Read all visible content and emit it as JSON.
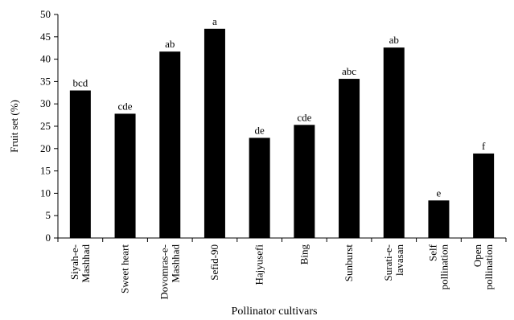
{
  "chart_data": {
    "type": "bar",
    "xlabel": "Pollinator  cultivars",
    "ylabel": "Fruit set (%)",
    "ylim": [
      0,
      50
    ],
    "yticks": [
      0,
      5,
      10,
      15,
      20,
      25,
      30,
      35,
      40,
      45,
      50
    ],
    "categories": [
      [
        "Siyah-e-",
        "Mashhad"
      ],
      [
        "Sweet heart"
      ],
      [
        "Dovomras-e-",
        "Mashhad"
      ],
      [
        "Sefid-90"
      ],
      [
        "Hajyusefi"
      ],
      [
        "Bing"
      ],
      [
        "Sunburst"
      ],
      [
        "Surati-e-",
        "lavasan"
      ],
      [
        "Self",
        "pollination"
      ],
      [
        "Open",
        "pollination"
      ]
    ],
    "values": [
      33,
      27.8,
      41.7,
      46.8,
      22.4,
      25.3,
      35.6,
      42.6,
      8.4,
      18.9
    ],
    "letters": [
      "bcd",
      "cde",
      "ab",
      "a",
      "de",
      "cde",
      "abc",
      "ab",
      "e",
      "f"
    ],
    "bar_color": "#000000",
    "grid": false
  }
}
